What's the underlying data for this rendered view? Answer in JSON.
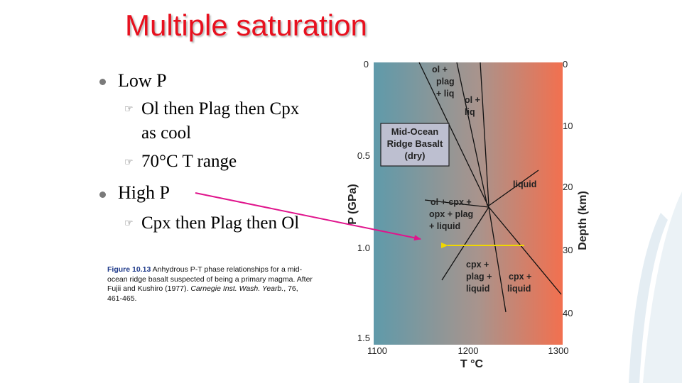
{
  "slide": {
    "title": "Multiple saturation",
    "bullets": [
      {
        "label": "Low P",
        "subs": [
          {
            "lines": [
              "Ol then Plag then Cpx",
              "as cool"
            ]
          },
          {
            "lines": [
              "70°C T range"
            ]
          }
        ]
      },
      {
        "label": "High P",
        "subs": [
          {
            "lines": [
              "Cpx then Plag then Ol"
            ]
          }
        ]
      }
    ],
    "caption": {
      "fig_label": "Figure 10.13",
      "text": " Anhydrous P-T phase relationships for a mid-ocean ridge basalt suspected of being a primary magma. After Fujii and Kushiro (1977). ",
      "journal": "Carnegie Inst. Wash. Yearb.",
      "ref": ", 76, 461-465."
    },
    "icons": {
      "bullet": "round-bullet-icon",
      "sub_bullet": "pointing-hand-icon"
    }
  },
  "diagram": {
    "x_axis_label": "T °C",
    "x_ticks": [
      "1100",
      "1200",
      "1300"
    ],
    "y_left_label": "P (GPa)",
    "y_left_ticks": [
      "0",
      "0.5",
      "1.0",
      "1.5"
    ],
    "y_right_label": "Depth (km)",
    "y_right_ticks": [
      "0",
      "10",
      "20",
      "30",
      "40"
    ],
    "box_label": [
      "Mid-Ocean",
      "Ridge Basalt",
      "(dry)"
    ],
    "field_labels": {
      "ol_plag_liq": [
        "ol +",
        "plag",
        "+ liq"
      ],
      "ol_liq": [
        "ol +",
        "liq"
      ],
      "liquid": "liquid",
      "ol_cpx_opx_plag": [
        "ol + cpx +",
        "opx + plag",
        "+ liquid"
      ],
      "cpx_plag_liquid": [
        "cpx +",
        "plag +",
        "liquid"
      ],
      "cpx_liquid": [
        "cpx +",
        "liquid"
      ]
    },
    "colors": {
      "gradient_start": "#5f9aaa",
      "gradient_end": "#f2704f",
      "arrow_magenta": "#e0148c",
      "arrow_yellow": "#f0d800"
    }
  }
}
